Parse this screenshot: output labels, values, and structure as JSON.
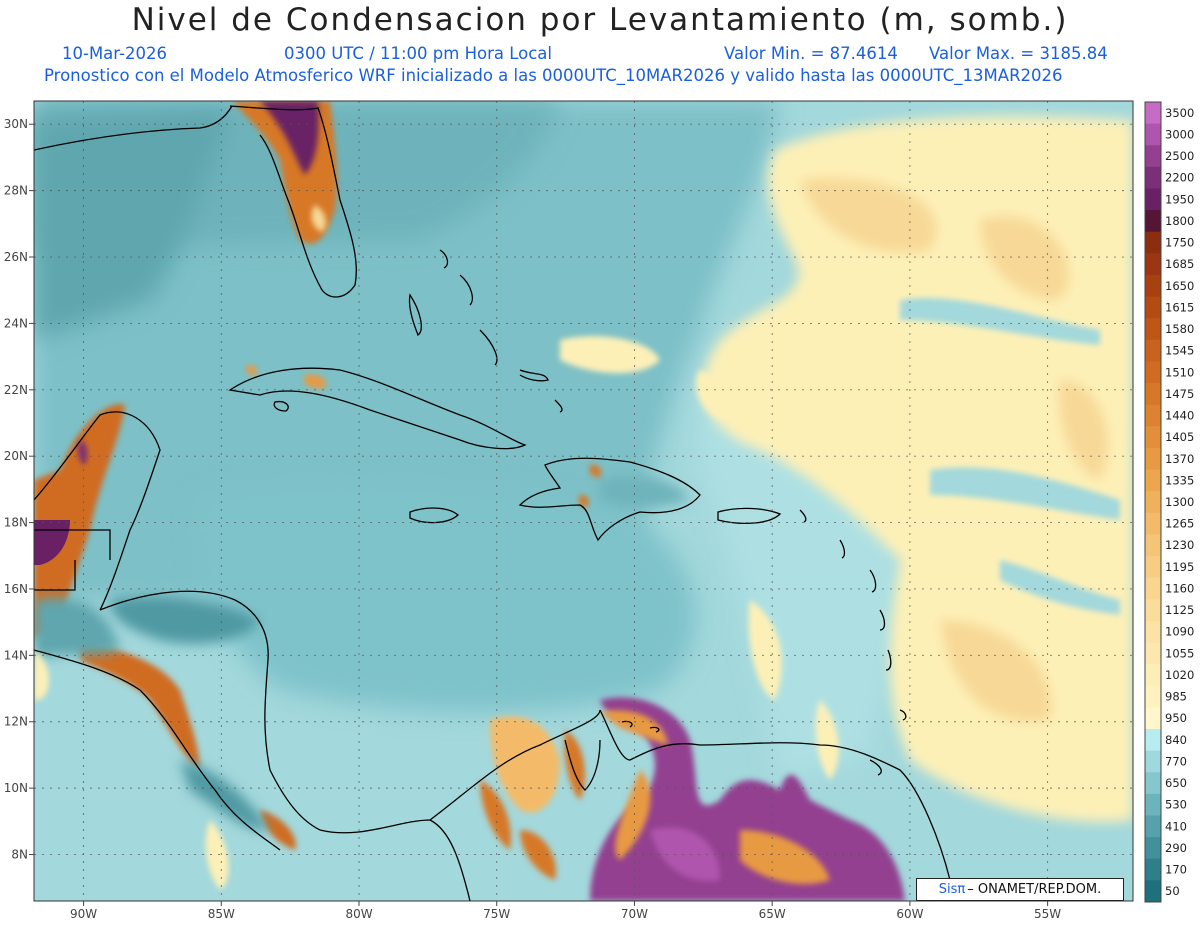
{
  "title": "Nivel de Condensacion por Levantamiento (m, somb.)",
  "header": {
    "date": "10-Mar-2026",
    "time": "0300 UTC / 11:00 pm Hora Local",
    "valor_min": "Valor Min. = 87.4614",
    "valor_max": "Valor Max. = 3185.84",
    "forecast_info": "Pronostico con el Modelo Atmosferico WRF inicializado a las 0000UTC_10MAR2026 y valido hasta las  0000UTC_13MAR2026"
  },
  "credit": {
    "logo": "Sisπ",
    "text": " – ONAMET/REP.DOM."
  },
  "map": {
    "lat_labels": [
      "30N",
      "28N",
      "26N",
      "24N",
      "22N",
      "20N",
      "18N",
      "16N",
      "14N",
      "12N",
      "10N",
      "8N"
    ],
    "lat_values": [
      30,
      28,
      26,
      24,
      22,
      20,
      18,
      16,
      14,
      12,
      10,
      8
    ],
    "lon_labels": [
      "90W",
      "85W",
      "80W",
      "75W",
      "70W",
      "65W",
      "60W",
      "55W"
    ],
    "lon_values": [
      -90,
      -85,
      -80,
      -75,
      -70,
      -65,
      -60,
      -55
    ],
    "lat_range": [
      6.6,
      30.7
    ],
    "lon_range": [
      -91.8,
      -51.9
    ],
    "grid": true
  },
  "legend": {
    "labels": [
      "3500",
      "3000",
      "2500",
      "2200",
      "1950",
      "1800",
      "1750",
      "1685",
      "1650",
      "1615",
      "1580",
      "1545",
      "1510",
      "1475",
      "1440",
      "1405",
      "1370",
      "1335",
      "1300",
      "1265",
      "1230",
      "1195",
      "1160",
      "1125",
      "1090",
      "1055",
      "1020",
      "985",
      "950",
      "840",
      "770",
      "650",
      "530",
      "410",
      "290",
      "170",
      "50"
    ],
    "colors": [
      "#c76cc4",
      "#b055ad",
      "#934090",
      "#7b2f78",
      "#692065",
      "#551534",
      "#8b2e0f",
      "#9c3511",
      "#a8400f",
      "#b44b13",
      "#bf5618",
      "#c9621d",
      "#d06c22",
      "#d77828",
      "#dd8230",
      "#e38e38",
      "#e89a42",
      "#eca64e",
      "#f0b15c",
      "#f3bb69",
      "#f5c577",
      "#f7cd84",
      "#f9d590",
      "#fadc9b",
      "#fbe2a5",
      "#fce7ae",
      "#fdedb7",
      "#fef2c0",
      "#fff6cc",
      "#b9ecef",
      "#9fd8dd",
      "#86c6cd",
      "#6cb3bc",
      "#56a1ab",
      "#41909b",
      "#2f7f8b",
      "#1f6f7c"
    ]
  }
}
